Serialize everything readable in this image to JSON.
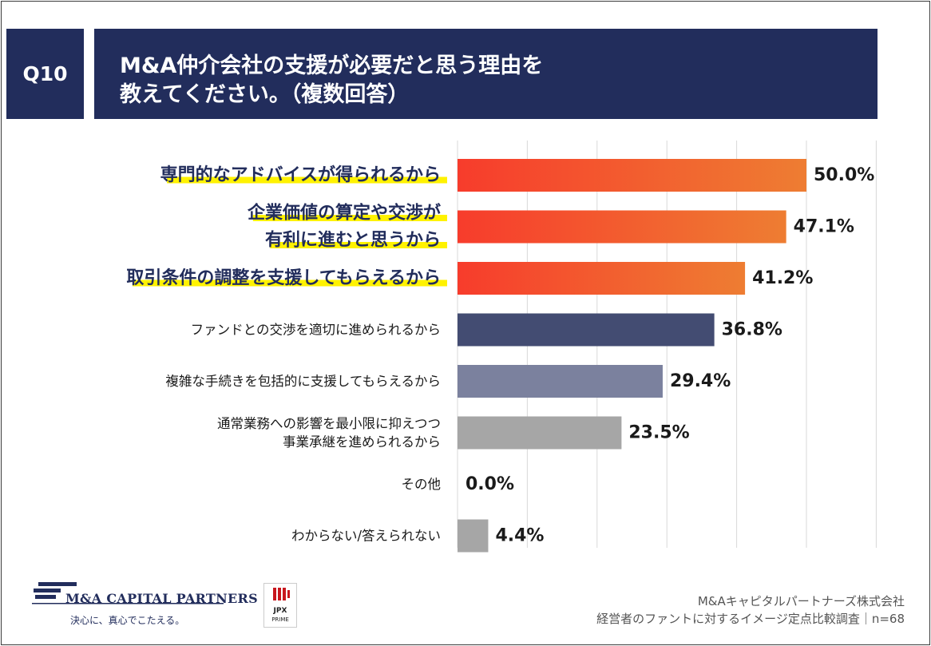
{
  "header": {
    "question_no": "Q10",
    "title_line1": "M&A仲介会社の支援が必要だと思う理由を",
    "title_line2": "教えてください。（複数回答）"
  },
  "chart_data": {
    "type": "bar",
    "orientation": "horizontal",
    "unit": "%",
    "xlim": [
      0,
      60
    ],
    "grid": true,
    "categories": [
      [
        "専門的なアドバイスが得られるから"
      ],
      [
        "企業価値の算定や交渉が",
        "有利に進むと思うから"
      ],
      [
        "取引条件の調整を支援してもらえるから"
      ],
      [
        "ファンドとの交渉を適切に進められるから"
      ],
      [
        "複雑な手続きを包括的に支援してもらえるから"
      ],
      [
        "通常業務への影響を最小限に抑えつつ",
        "事業承継を進められるから"
      ],
      [
        "その他"
      ],
      [
        "わからない/答えられない"
      ]
    ],
    "values": [
      50.0,
      47.1,
      41.2,
      36.8,
      29.4,
      23.5,
      0.0,
      4.4
    ],
    "value_labels": [
      "50.0%",
      "47.1%",
      "41.2%",
      "36.8%",
      "29.4%",
      "23.5%",
      "0.0%",
      "4.4%"
    ],
    "highlighted": [
      true,
      true,
      true,
      false,
      false,
      false,
      false,
      false
    ],
    "bar_colors": [
      "gradient-orange",
      "gradient-orange",
      "gradient-orange",
      "#434c72",
      "#7b819e",
      "#a6a6a6",
      "#a6a6a6",
      "#a6a6a6"
    ]
  },
  "colors": {
    "header_bg": "#222d5c",
    "orange_start": "#f73c2c",
    "orange_end": "#ee7d32",
    "highlight": "#fff200",
    "emph_text": "#222d5c",
    "grid": "#d9d9d9"
  },
  "footer": {
    "company_logo_text": "M&A CAPITAL PARTNERS",
    "tagline": "決心に、真心でこたえる。",
    "jpx_label": "JPX",
    "jpx_sub": "PRIME",
    "source_line1": "M&Aキャピタルパートナーズ株式会社",
    "source_line2": "経営者のファントに対するイメージ定点比較調査｜n=68"
  }
}
